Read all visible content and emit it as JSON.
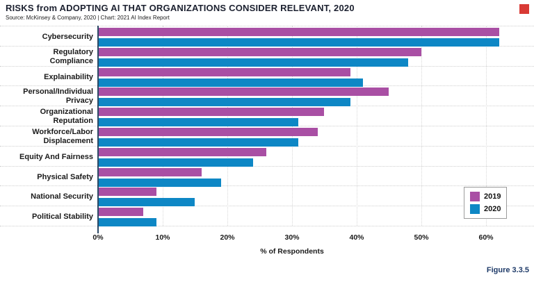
{
  "header": {
    "title": "RISKS from ADOPTING AI THAT ORGANIZATIONS CONSIDER RELEVANT, 2020",
    "source": "Source: McKinsey & Company, 2020 | Chart: 2021 AI Index Report"
  },
  "figure_label": "Figure 3.3.5",
  "colors": {
    "series_2019": "#a94fa4",
    "series_2020": "#0e87c5",
    "figure_label_navy": "#1e3a68",
    "logo_red": "#d93a35",
    "axis_line": "#2d4a66"
  },
  "chart_data": {
    "type": "bar",
    "orientation": "horizontal",
    "title": "RISKS from ADOPTING AI THAT ORGANIZATIONS CONSIDER RELEVANT, 2020",
    "categories": [
      "Cybersecurity",
      "Regulatory Compliance",
      "Explainability",
      "Personal/Individual Privacy",
      "Organizational Reputation",
      "Workforce/Labor Displacement",
      "Equity And Fairness",
      "Physical Safety",
      "National Security",
      "Political Stability"
    ],
    "category_label_lines": [
      [
        "Cybersecurity"
      ],
      [
        "Regulatory",
        "Compliance"
      ],
      [
        "Explainability"
      ],
      [
        "Personal/Individual",
        "Privacy"
      ],
      [
        "Organizational",
        "Reputation"
      ],
      [
        "Workforce/Labor",
        "Displacement"
      ],
      [
        "Equity And Fairness"
      ],
      [
        "Physical Safety"
      ],
      [
        "National Security"
      ],
      [
        "Political Stability"
      ]
    ],
    "series": [
      {
        "name": "2019",
        "color": "#a94fa4",
        "values": [
          62,
          50,
          39,
          45,
          35,
          34,
          26,
          16,
          9,
          7
        ]
      },
      {
        "name": "2020",
        "color": "#0e87c5",
        "values": [
          62,
          48,
          41,
          39,
          31,
          31,
          24,
          19,
          15,
          9
        ]
      }
    ],
    "xlabel": "% of Respondents",
    "x_ticks": [
      "0%",
      "10%",
      "20%",
      "30%",
      "40%",
      "50%",
      "60%"
    ],
    "x_tick_values": [
      0,
      10,
      20,
      30,
      40,
      50,
      60
    ],
    "xlim": [
      0,
      67
    ],
    "grid": true,
    "legend_position": "inside-right"
  }
}
